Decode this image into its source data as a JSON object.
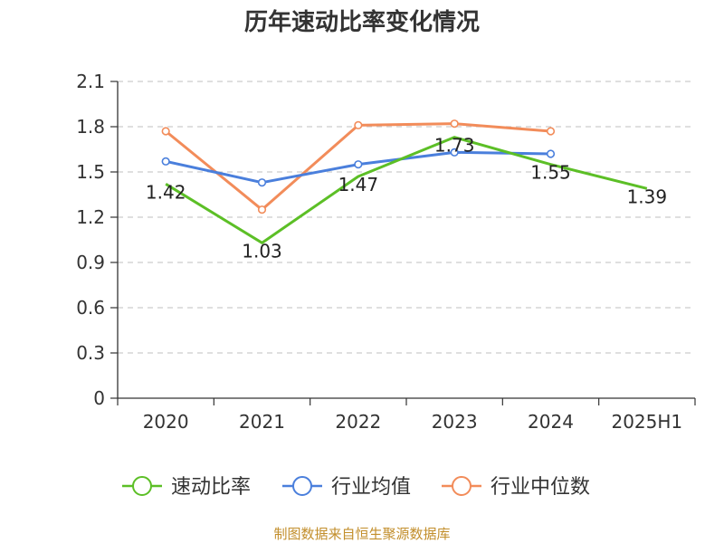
{
  "chart_data": {
    "type": "line",
    "title": "历年速动比率变化情况",
    "categories": [
      "2020",
      "2021",
      "2022",
      "2023",
      "2024",
      "2025H1"
    ],
    "y_ticks": [
      "0",
      "0.3",
      "0.6",
      "0.9",
      "1.2",
      "1.5",
      "1.8",
      "2.1"
    ],
    "ylim": [
      0,
      2.1
    ],
    "grid": true,
    "legend_position": "bottom",
    "series": [
      {
        "name": "速动比率",
        "color": "#5cbf26",
        "values": [
          1.42,
          1.03,
          1.47,
          1.73,
          1.55,
          1.39
        ],
        "labels": [
          "1.42",
          "1.03",
          "1.47",
          "1.73",
          "1.55",
          "1.39"
        ]
      },
      {
        "name": "行业均值",
        "color": "#4a7fdc",
        "values": [
          1.57,
          1.43,
          1.55,
          1.63,
          1.62,
          null
        ]
      },
      {
        "name": "行业中位数",
        "color": "#f28c5a",
        "values": [
          1.77,
          1.25,
          1.81,
          1.82,
          1.77,
          null
        ]
      }
    ]
  },
  "source_text": "制图数据来自恒生聚源数据库"
}
